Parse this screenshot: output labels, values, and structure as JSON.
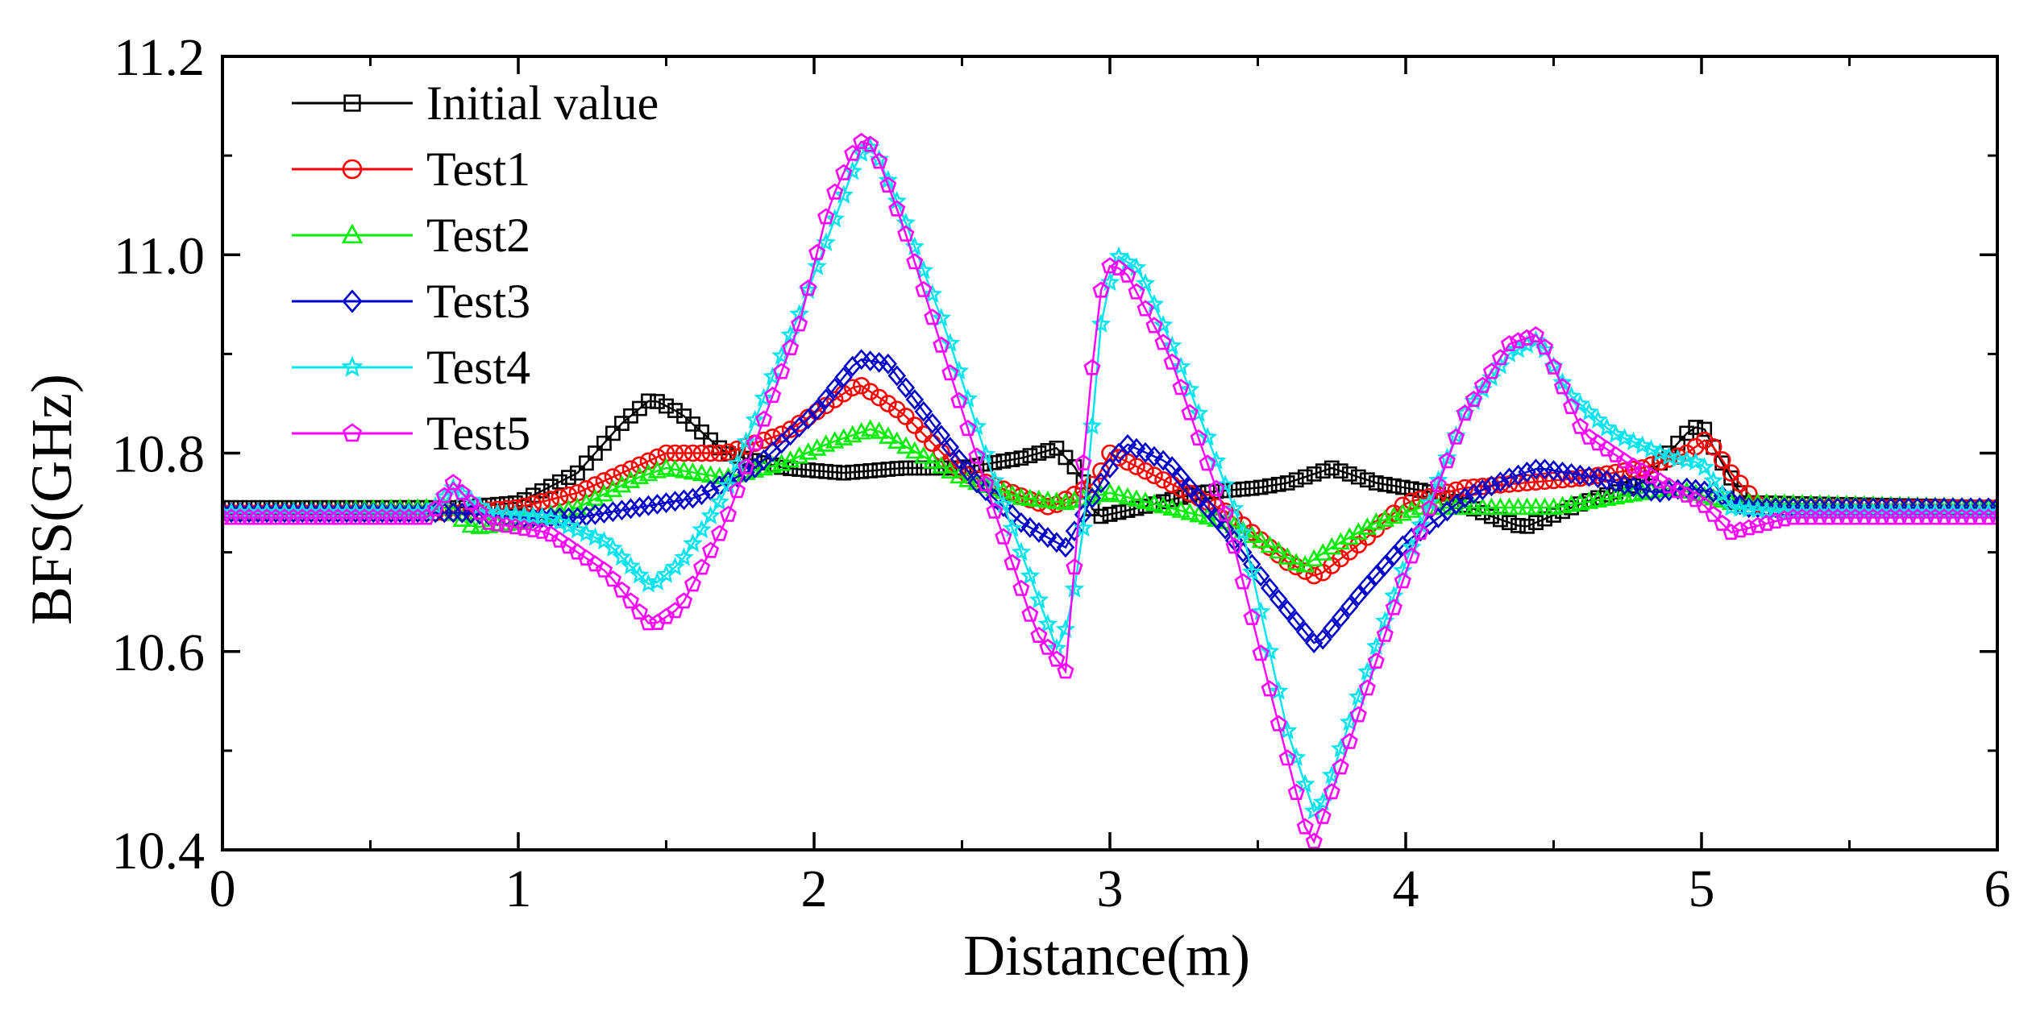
{
  "chart_data": {
    "type": "line",
    "title": "",
    "xlabel": "Distance(m)",
    "ylabel": "BFS(GHz)",
    "xlim": [
      0,
      6
    ],
    "ylim": [
      10.4,
      11.2
    ],
    "xticks": [
      0,
      1,
      2,
      3,
      4,
      5,
      6
    ],
    "xtick_labels": [
      "0",
      "1",
      "2",
      "3",
      "4",
      "5",
      "6"
    ],
    "yticks": [
      10.4,
      10.6,
      10.8,
      11.0,
      11.2
    ],
    "ytick_labels": [
      "10.4",
      "10.6",
      "10.8",
      "11.0",
      "11.2"
    ],
    "grid": false,
    "legend_position": "top-left",
    "series": [
      {
        "name": "Initial value",
        "color": "#000000",
        "marker": "square",
        "points": [
          [
            0,
            10.745
          ],
          [
            0.8,
            10.745
          ],
          [
            1.0,
            10.75
          ],
          [
            1.2,
            10.78
          ],
          [
            1.35,
            10.83
          ],
          [
            1.45,
            10.855
          ],
          [
            1.55,
            10.84
          ],
          [
            1.7,
            10.8
          ],
          [
            1.9,
            10.785
          ],
          [
            2.1,
            10.78
          ],
          [
            2.3,
            10.785
          ],
          [
            2.5,
            10.785
          ],
          [
            2.7,
            10.795
          ],
          [
            2.82,
            10.805
          ],
          [
            2.9,
            10.78
          ],
          [
            2.95,
            10.735
          ],
          [
            3.1,
            10.745
          ],
          [
            3.3,
            10.76
          ],
          [
            3.5,
            10.765
          ],
          [
            3.6,
            10.77
          ],
          [
            3.75,
            10.785
          ],
          [
            3.9,
            10.77
          ],
          [
            4.1,
            10.76
          ],
          [
            4.3,
            10.735
          ],
          [
            4.4,
            10.725
          ],
          [
            4.6,
            10.75
          ],
          [
            4.8,
            10.77
          ],
          [
            4.95,
            10.82
          ],
          [
            5.0,
            10.83
          ],
          [
            5.05,
            10.8
          ],
          [
            5.15,
            10.75
          ],
          [
            6.0,
            10.745
          ]
        ]
      },
      {
        "name": "Test1",
        "color": "#ff0000",
        "marker": "circle",
        "points": [
          [
            0,
            10.74
          ],
          [
            0.8,
            10.74
          ],
          [
            1.0,
            10.745
          ],
          [
            1.2,
            10.76
          ],
          [
            1.35,
            10.78
          ],
          [
            1.5,
            10.8
          ],
          [
            1.7,
            10.8
          ],
          [
            1.9,
            10.82
          ],
          [
            2.05,
            10.85
          ],
          [
            2.15,
            10.87
          ],
          [
            2.3,
            10.84
          ],
          [
            2.5,
            10.78
          ],
          [
            2.8,
            10.745
          ],
          [
            2.95,
            10.77
          ],
          [
            3.0,
            10.8
          ],
          [
            3.2,
            10.77
          ],
          [
            3.4,
            10.74
          ],
          [
            3.6,
            10.69
          ],
          [
            3.7,
            10.675
          ],
          [
            3.85,
            10.71
          ],
          [
            4.0,
            10.75
          ],
          [
            4.2,
            10.765
          ],
          [
            4.4,
            10.77
          ],
          [
            4.6,
            10.775
          ],
          [
            4.8,
            10.785
          ],
          [
            4.95,
            10.8
          ],
          [
            5.02,
            10.815
          ],
          [
            5.1,
            10.78
          ],
          [
            5.2,
            10.745
          ],
          [
            6.0,
            10.745
          ]
        ]
      },
      {
        "name": "Test2",
        "color": "#00ee00",
        "marker": "triangle",
        "points": [
          [
            0,
            10.74
          ],
          [
            0.75,
            10.745
          ],
          [
            0.85,
            10.725
          ],
          [
            1.0,
            10.73
          ],
          [
            1.2,
            10.745
          ],
          [
            1.4,
            10.775
          ],
          [
            1.5,
            10.785
          ],
          [
            1.7,
            10.775
          ],
          [
            1.9,
            10.79
          ],
          [
            2.05,
            10.81
          ],
          [
            2.2,
            10.825
          ],
          [
            2.35,
            10.8
          ],
          [
            2.5,
            10.775
          ],
          [
            2.7,
            10.755
          ],
          [
            2.85,
            10.75
          ],
          [
            3.0,
            10.76
          ],
          [
            3.2,
            10.745
          ],
          [
            3.4,
            10.73
          ],
          [
            3.55,
            10.705
          ],
          [
            3.65,
            10.685
          ],
          [
            3.75,
            10.705
          ],
          [
            3.9,
            10.73
          ],
          [
            4.05,
            10.745
          ],
          [
            4.3,
            10.745
          ],
          [
            4.5,
            10.745
          ],
          [
            4.7,
            10.755
          ],
          [
            4.9,
            10.765
          ],
          [
            5.1,
            10.75
          ],
          [
            6.0,
            10.745
          ]
        ]
      },
      {
        "name": "Test3",
        "color": "#0000cc",
        "marker": "diamond",
        "points": [
          [
            0,
            10.74
          ],
          [
            0.8,
            10.74
          ],
          [
            1.0,
            10.735
          ],
          [
            1.2,
            10.735
          ],
          [
            1.4,
            10.745
          ],
          [
            1.6,
            10.755
          ],
          [
            1.8,
            10.785
          ],
          [
            2.0,
            10.84
          ],
          [
            2.15,
            10.895
          ],
          [
            2.25,
            10.89
          ],
          [
            2.4,
            10.83
          ],
          [
            2.55,
            10.77
          ],
          [
            2.7,
            10.73
          ],
          [
            2.85,
            10.705
          ],
          [
            2.95,
            10.76
          ],
          [
            3.05,
            10.81
          ],
          [
            3.2,
            10.79
          ],
          [
            3.4,
            10.72
          ],
          [
            3.55,
            10.66
          ],
          [
            3.7,
            10.605
          ],
          [
            3.85,
            10.66
          ],
          [
            4.0,
            10.71
          ],
          [
            4.2,
            10.755
          ],
          [
            4.35,
            10.775
          ],
          [
            4.45,
            10.785
          ],
          [
            4.65,
            10.775
          ],
          [
            4.85,
            10.76
          ],
          [
            4.95,
            10.765
          ],
          [
            5.05,
            10.76
          ],
          [
            5.15,
            10.745
          ],
          [
            6.0,
            10.745
          ]
        ]
      },
      {
        "name": "Test4",
        "color": "#00e5ee",
        "marker": "star",
        "points": [
          [
            0,
            10.74
          ],
          [
            0.7,
            10.74
          ],
          [
            0.78,
            10.765
          ],
          [
            0.9,
            10.74
          ],
          [
            1.1,
            10.735
          ],
          [
            1.3,
            10.71
          ],
          [
            1.45,
            10.665
          ],
          [
            1.55,
            10.69
          ],
          [
            1.7,
            10.76
          ],
          [
            1.85,
            10.87
          ],
          [
            1.95,
            10.94
          ],
          [
            2.05,
            11.02
          ],
          [
            2.15,
            11.1
          ],
          [
            2.2,
            11.11
          ],
          [
            2.3,
            11.04
          ],
          [
            2.45,
            10.92
          ],
          [
            2.6,
            10.78
          ],
          [
            2.75,
            10.66
          ],
          [
            2.83,
            10.595
          ],
          [
            2.9,
            10.69
          ],
          [
            2.97,
            10.93
          ],
          [
            3.02,
            11.0
          ],
          [
            3.1,
            10.985
          ],
          [
            3.25,
            10.88
          ],
          [
            3.45,
            10.72
          ],
          [
            3.6,
            10.52
          ],
          [
            3.7,
            10.43
          ],
          [
            3.8,
            10.52
          ],
          [
            4.0,
            10.69
          ],
          [
            4.2,
            10.84
          ],
          [
            4.35,
            10.9
          ],
          [
            4.45,
            10.915
          ],
          [
            4.55,
            10.86
          ],
          [
            4.7,
            10.82
          ],
          [
            4.9,
            10.795
          ],
          [
            5.0,
            10.79
          ],
          [
            5.1,
            10.745
          ],
          [
            5.3,
            10.74
          ],
          [
            6.0,
            10.74
          ]
        ]
      },
      {
        "name": "Test5",
        "color": "#ff00ff",
        "marker": "pentagon",
        "points": [
          [
            0,
            10.735
          ],
          [
            0.7,
            10.735
          ],
          [
            0.78,
            10.77
          ],
          [
            0.9,
            10.73
          ],
          [
            1.1,
            10.72
          ],
          [
            1.3,
            10.68
          ],
          [
            1.45,
            10.625
          ],
          [
            1.55,
            10.645
          ],
          [
            1.7,
            10.73
          ],
          [
            1.85,
            10.85
          ],
          [
            1.95,
            10.93
          ],
          [
            2.05,
            11.05
          ],
          [
            2.15,
            11.115
          ],
          [
            2.2,
            11.11
          ],
          [
            2.3,
            11.03
          ],
          [
            2.45,
            10.89
          ],
          [
            2.6,
            10.75
          ],
          [
            2.75,
            10.62
          ],
          [
            2.85,
            10.58
          ],
          [
            2.93,
            10.86
          ],
          [
            2.98,
            10.99
          ],
          [
            3.05,
            10.985
          ],
          [
            3.2,
            10.9
          ],
          [
            3.4,
            10.73
          ],
          [
            3.55,
            10.55
          ],
          [
            3.68,
            10.4
          ],
          [
            3.8,
            10.5
          ],
          [
            4.0,
            10.68
          ],
          [
            4.2,
            10.84
          ],
          [
            4.35,
            10.91
          ],
          [
            4.45,
            10.92
          ],
          [
            4.6,
            10.82
          ],
          [
            4.75,
            10.79
          ],
          [
            4.9,
            10.765
          ],
          [
            5.0,
            10.75
          ],
          [
            5.1,
            10.72
          ],
          [
            5.3,
            10.735
          ],
          [
            6.0,
            10.735
          ]
        ]
      }
    ]
  }
}
